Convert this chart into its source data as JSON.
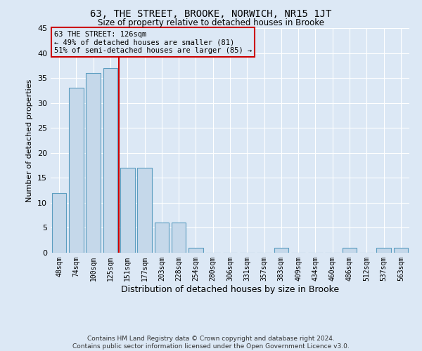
{
  "title": "63, THE STREET, BROOKE, NORWICH, NR15 1JT",
  "subtitle": "Size of property relative to detached houses in Brooke",
  "xlabel": "Distribution of detached houses by size in Brooke",
  "ylabel": "Number of detached properties",
  "categories": [
    "48sqm",
    "74sqm",
    "100sqm",
    "125sqm",
    "151sqm",
    "177sqm",
    "203sqm",
    "228sqm",
    "254sqm",
    "280sqm",
    "306sqm",
    "331sqm",
    "357sqm",
    "383sqm",
    "409sqm",
    "434sqm",
    "460sqm",
    "486sqm",
    "512sqm",
    "537sqm",
    "563sqm"
  ],
  "values": [
    12,
    33,
    36,
    37,
    17,
    17,
    6,
    6,
    1,
    0,
    0,
    0,
    0,
    1,
    0,
    0,
    0,
    1,
    0,
    1,
    1
  ],
  "bar_color": "#c5d8ea",
  "bar_edge_color": "#5b9dc0",
  "marker_line_index": 3,
  "marker_line_color": "#cc0000",
  "ylim_max": 45,
  "yticks": [
    0,
    5,
    10,
    15,
    20,
    25,
    30,
    35,
    40,
    45
  ],
  "ann_line1": "63 THE STREET: 126sqm",
  "ann_line2": "← 49% of detached houses are smaller (81)",
  "ann_line3": "51% of semi-detached houses are larger (85) →",
  "ann_box_color": "#cc0000",
  "bg_color": "#dce8f5",
  "grid_color": "#ffffff",
  "footer1": "Contains HM Land Registry data © Crown copyright and database right 2024.",
  "footer2": "Contains public sector information licensed under the Open Government Licence v3.0."
}
